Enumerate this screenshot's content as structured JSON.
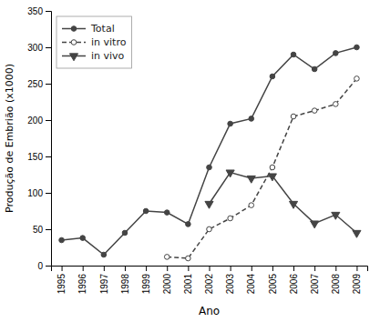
{
  "chart_data": {
    "type": "line",
    "x": [
      1995,
      1996,
      1997,
      1998,
      1999,
      2000,
      2001,
      2002,
      2003,
      2004,
      2005,
      2006,
      2007,
      2008,
      2009
    ],
    "series": [
      {
        "name": "Total",
        "color": "#444444",
        "marker": "circle",
        "line_style": "solid",
        "values": [
          35,
          38,
          15,
          45,
          75,
          73,
          57,
          135,
          195,
          202,
          260,
          290,
          270,
          292,
          300
        ]
      },
      {
        "name": "in vitro",
        "color": "#444444",
        "marker": "open-circle",
        "line_style": "dashed",
        "values": [
          null,
          null,
          null,
          null,
          null,
          12,
          10,
          50,
          65,
          83,
          135,
          205,
          213,
          222,
          257
        ]
      },
      {
        "name": "in vivo",
        "color": "#444444",
        "marker": "triangle-down",
        "line_style": "solid",
        "values": [
          null,
          null,
          null,
          null,
          null,
          null,
          null,
          85,
          128,
          120,
          123,
          85,
          58,
          70,
          45
        ]
      }
    ],
    "xlabel": "Ano",
    "ylabel": "Produção de Embrião (x1000)",
    "xlim": [
      1994.5,
      2009.5
    ],
    "xticks": [
      1995,
      1996,
      1997,
      1998,
      1999,
      2000,
      2001,
      2002,
      2003,
      2004,
      2005,
      2006,
      2007,
      2008,
      2009
    ],
    "ylim": [
      0,
      350
    ],
    "yticks": [
      0,
      50,
      100,
      150,
      200,
      250,
      300,
      350
    ],
    "legend": "upper left",
    "grid": false
  }
}
